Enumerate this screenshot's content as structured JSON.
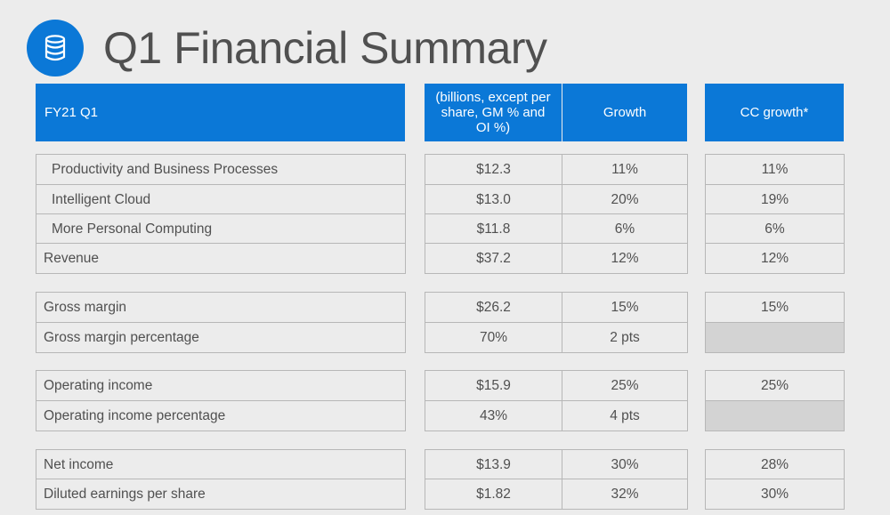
{
  "slide": {
    "title": "Q1 Financial Summary",
    "icon": "database-icon",
    "accent_color": "#0b78d7"
  },
  "headers": {
    "label": "FY21 Q1",
    "value": "(billions, except per share, GM % and OI %)",
    "growth": "Growth",
    "cc_growth": "CC growth*"
  },
  "rows": [
    {
      "label": "Productivity and Business Processes",
      "value": "$12.3",
      "growth": "11%",
      "cc": "11%"
    },
    {
      "label": "Intelligent Cloud",
      "value": "$13.0",
      "growth": "20%",
      "cc": "19%"
    },
    {
      "label": "More Personal Computing",
      "value": "$11.8",
      "growth": "6%",
      "cc": "6%"
    },
    {
      "label": "Revenue",
      "value": "$37.2",
      "growth": "12%",
      "cc": "12%"
    },
    {
      "label": "Gross margin",
      "value": "$26.2",
      "growth": "15%",
      "cc": "15%"
    },
    {
      "label": "Gross margin percentage",
      "value": "70%",
      "growth": "2 pts",
      "cc": ""
    },
    {
      "label": "Operating income",
      "value": "$15.9",
      "growth": "25%",
      "cc": "25%"
    },
    {
      "label": "Operating income percentage",
      "value": "43%",
      "growth": "4 pts",
      "cc": ""
    },
    {
      "label": "Net income",
      "value": "$13.9",
      "growth": "30%",
      "cc": "28%"
    },
    {
      "label": "Diluted earnings per share",
      "value": "$1.82",
      "growth": "32%",
      "cc": "30%"
    }
  ]
}
